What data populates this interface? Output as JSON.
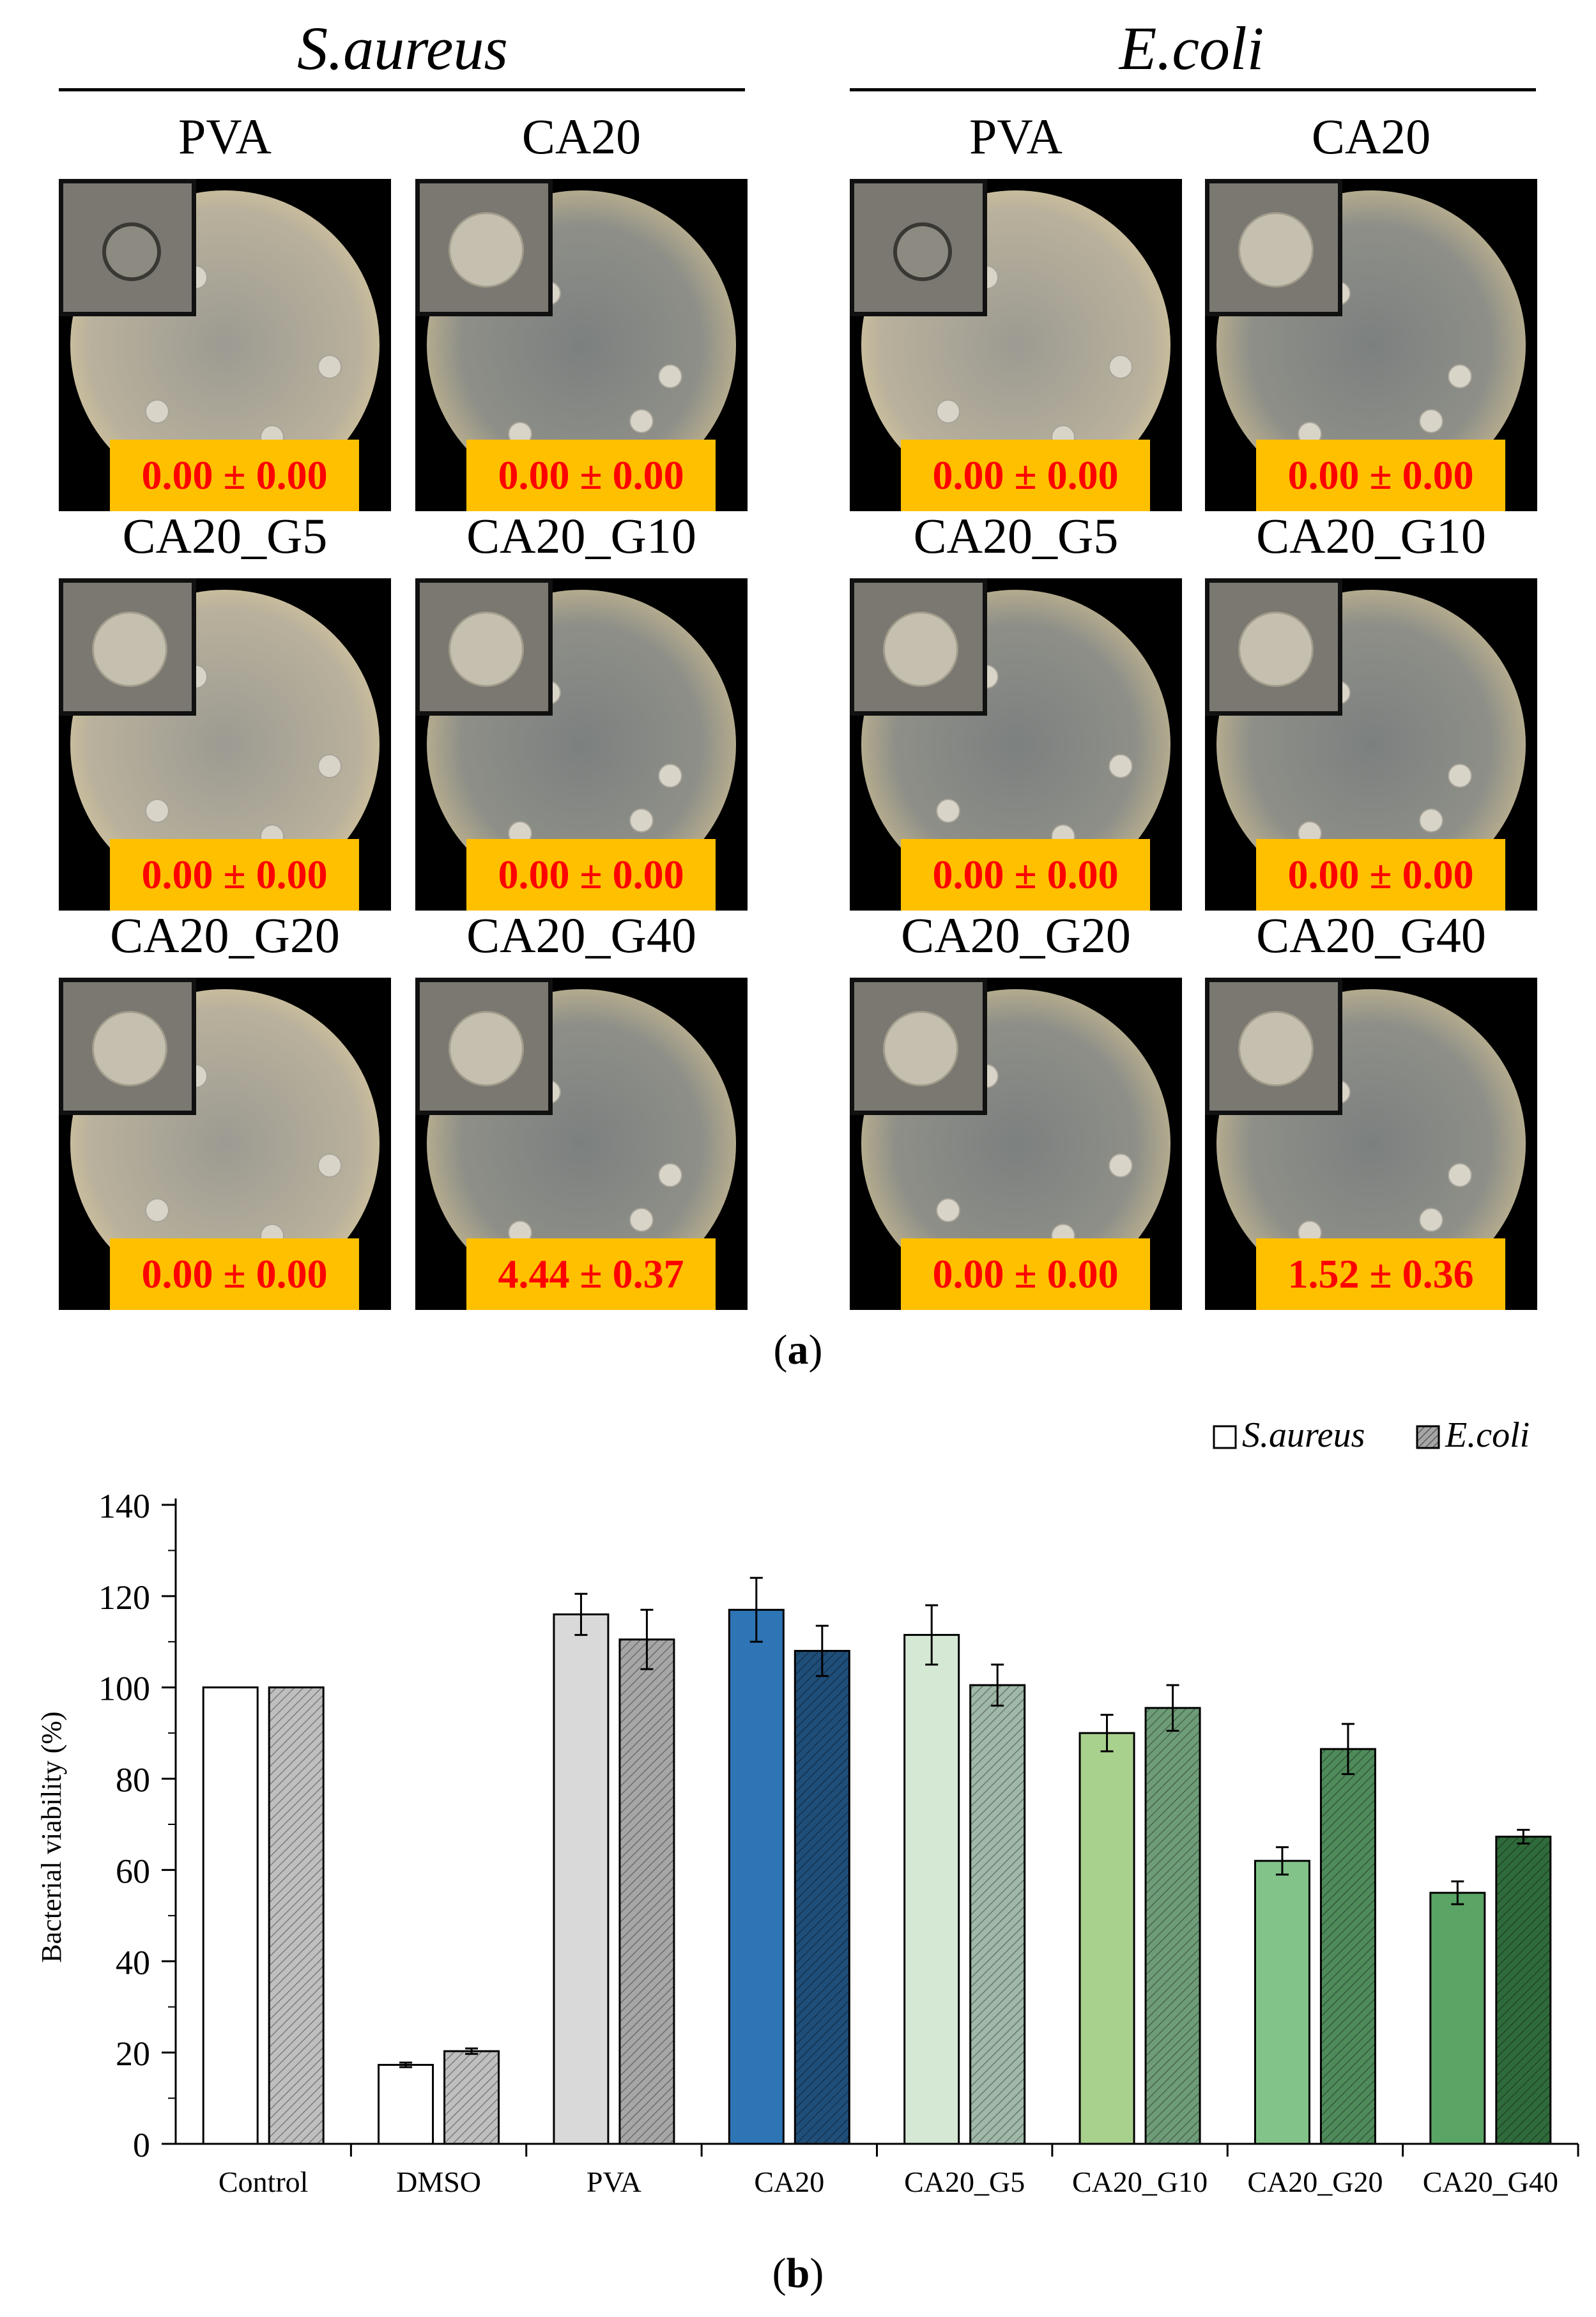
{
  "panel_a": {
    "species": [
      {
        "name": "S.aureus",
        "plates": [
          {
            "label": "PVA",
            "value": "0.00 ± 0.00",
            "inset": "pva"
          },
          {
            "label": "CA20",
            "value": "0.00 ± 0.00",
            "inset": "disc"
          },
          {
            "label": "CA20_G5",
            "value": "0.00 ± 0.00",
            "inset": "disc"
          },
          {
            "label": "CA20_G10",
            "value": "0.00 ± 0.00",
            "inset": "disc"
          },
          {
            "label": "CA20_G20",
            "value": "0.00 ± 0.00",
            "inset": "disc"
          },
          {
            "label": "CA20_G40",
            "value": "4.44 ± 0.37",
            "inset": "disc"
          }
        ]
      },
      {
        "name": "E.coli",
        "plates": [
          {
            "label": "PVA",
            "value": "0.00 ± 0.00",
            "inset": "pva"
          },
          {
            "label": "CA20",
            "value": "0.00 ± 0.00",
            "inset": "disc"
          },
          {
            "label": "CA20_G5",
            "value": "0.00 ± 0.00",
            "inset": "disc"
          },
          {
            "label": "CA20_G10",
            "value": "0.00 ± 0.00",
            "inset": "disc"
          },
          {
            "label": "CA20_G20",
            "value": "0.00 ± 0.00",
            "inset": "disc"
          },
          {
            "label": "CA20_G40",
            "value": "1.52 ± 0.36",
            "inset": "disc"
          }
        ]
      }
    ],
    "caption": "a"
  },
  "panel_b": {
    "caption": "b"
  },
  "chart_data": {
    "type": "bar",
    "title": "",
    "xlabel": "",
    "ylabel": "Bacterial viability (%)",
    "ylim": [
      0,
      140
    ],
    "yticks": [
      0,
      20,
      40,
      60,
      80,
      100,
      120,
      140
    ],
    "legend_position": "top-right",
    "categories": [
      "Control",
      "DMSO",
      "PVA",
      "CA20",
      "CA20_G5",
      "CA20_G10",
      "CA20_G20",
      "CA20_G40"
    ],
    "series": [
      {
        "name": "S.aureus",
        "values": [
          100,
          17.3,
          116,
          117,
          111.5,
          90,
          62,
          55
        ],
        "errors": [
          0,
          0.5,
          4.5,
          7,
          6.5,
          4,
          3,
          2.5
        ],
        "colors": [
          "#ffffff",
          "#ffffff",
          "#d9d9d9",
          "#2e75b6",
          "#d5e8d4",
          "#a9d18e",
          "#82c38a",
          "#5aa465"
        ]
      },
      {
        "name": "E.coli",
        "values": [
          100,
          20.3,
          110.5,
          108,
          100.5,
          95.5,
          86.5,
          67.3
        ],
        "errors": [
          0,
          0.6,
          6.5,
          5.5,
          4.5,
          5,
          5.5,
          1.5
        ],
        "colors": [
          "#bfbfbf",
          "#bfbfbf",
          "#a6a6a6",
          "#1f4e79",
          "#9fb8a8",
          "#6f9c78",
          "#4f8a5a",
          "#2f6b3a"
        ]
      }
    ]
  }
}
